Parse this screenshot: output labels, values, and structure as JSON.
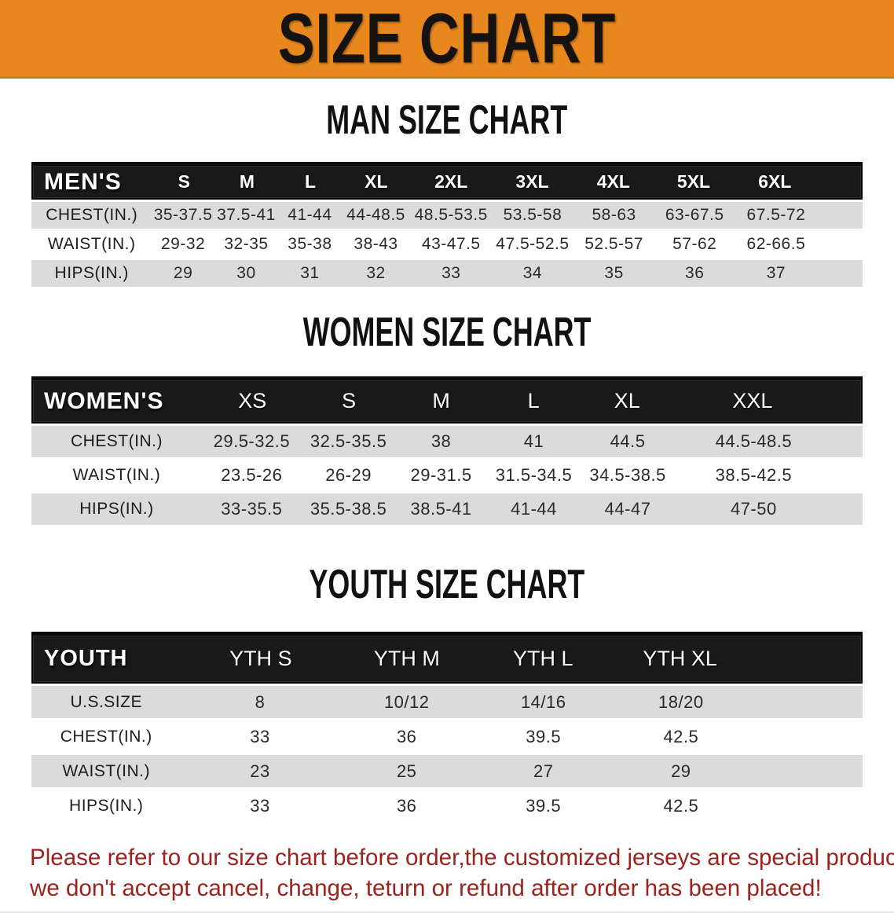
{
  "banner": {
    "title": "SIZE CHART"
  },
  "colors": {
    "banner_bg": "#E8871E",
    "header_band": "#191919",
    "row_gray": "#DBDBDB",
    "footer_red": "#9C221E"
  },
  "men": {
    "heading": "MAN SIZE CHART",
    "corner_label": "MEN'S",
    "sizes": [
      "S",
      "M",
      "L",
      "XL",
      "2XL",
      "3XL",
      "4XL",
      "5XL",
      "6XL"
    ],
    "rows": [
      {
        "label": "CHEST(IN.)",
        "values": [
          "35-37.5",
          "37.5-41",
          "41-44",
          "44-48.5",
          "48.5-53.5",
          "53.5-58",
          "58-63",
          "63-67.5",
          "67.5-72"
        ]
      },
      {
        "label": "WAIST(IN.)",
        "values": [
          "29-32",
          "32-35",
          "35-38",
          "38-43",
          "43-47.5",
          "47.5-52.5",
          "52.5-57",
          "57-62",
          "62-66.5"
        ]
      },
      {
        "label": "HIPS(IN.)",
        "values": [
          "29",
          "30",
          "31",
          "32",
          "33",
          "34",
          "35",
          "36",
          "37"
        ]
      }
    ]
  },
  "women": {
    "heading": "WOMEN SIZE CHART",
    "corner_label": "WOMEN'S",
    "sizes": [
      "XS",
      "S",
      "M",
      "L",
      "XL",
      "XXL"
    ],
    "rows": [
      {
        "label": "CHEST(IN.)",
        "values": [
          "29.5-32.5",
          "32.5-35.5",
          "38",
          "41",
          "44.5",
          "44.5-48.5"
        ]
      },
      {
        "label": "WAIST(IN.)",
        "values": [
          "23.5-26",
          "26-29",
          "29-31.5",
          "31.5-34.5",
          "34.5-38.5",
          "38.5-42.5"
        ]
      },
      {
        "label": "HIPS(IN.)",
        "values": [
          "33-35.5",
          "35.5-38.5",
          "38.5-41",
          "41-44",
          "44-47",
          "47-50"
        ]
      }
    ]
  },
  "youth": {
    "heading": "YOUTH SIZE CHART",
    "corner_label": "YOUTH",
    "sizes": [
      "YTH S",
      "YTH M",
      "YTH L",
      "YTH XL"
    ],
    "rows": [
      {
        "label": "U.S.SIZE",
        "values": [
          "8",
          "10/12",
          "14/16",
          "18/20"
        ]
      },
      {
        "label": "CHEST(IN.)",
        "values": [
          "33",
          "36",
          "39.5",
          "42.5"
        ]
      },
      {
        "label": "WAIST(IN.)",
        "values": [
          "23",
          "25",
          "27",
          "29"
        ]
      },
      {
        "label": "HIPS(IN.)",
        "values": [
          "33",
          "36",
          "39.5",
          "42.5"
        ]
      }
    ]
  },
  "footer": {
    "line1": "Please refer to our size chart before order,the customized jerseys are special products,",
    "line2": "we don't accept cancel, change, teturn or refund after order has been placed!"
  }
}
